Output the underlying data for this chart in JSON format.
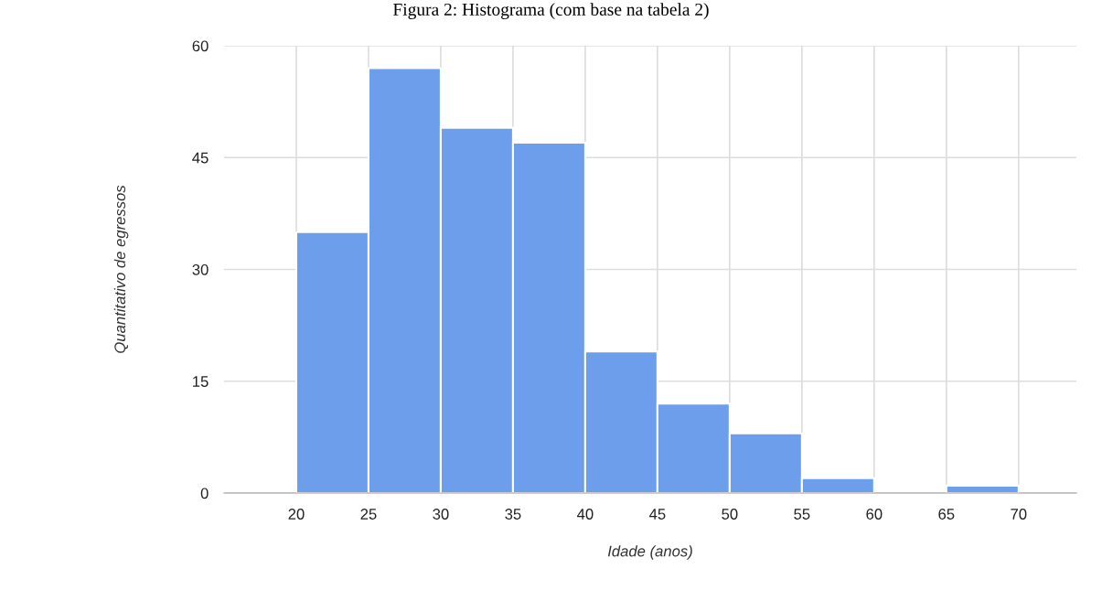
{
  "chart_data": {
    "type": "histogram",
    "title": "Figura 2: Histograma (com base na tabela 2)",
    "xlabel": "Idade (anos)",
    "ylabel": "Quantitativo de egressos",
    "bins": [
      20,
      25,
      30,
      35,
      40,
      45,
      50,
      55,
      60,
      65,
      70
    ],
    "values": [
      35,
      57,
      49,
      47,
      19,
      12,
      8,
      2,
      0,
      1
    ],
    "color": "#6d9eeb",
    "xlim": [
      15,
      74
    ],
    "xticks": [
      20,
      25,
      30,
      35,
      40,
      45,
      50,
      55,
      60,
      65,
      70
    ],
    "ylim": [
      0,
      60
    ],
    "yticks": [
      0,
      15,
      30,
      45,
      60
    ],
    "grid": true
  }
}
